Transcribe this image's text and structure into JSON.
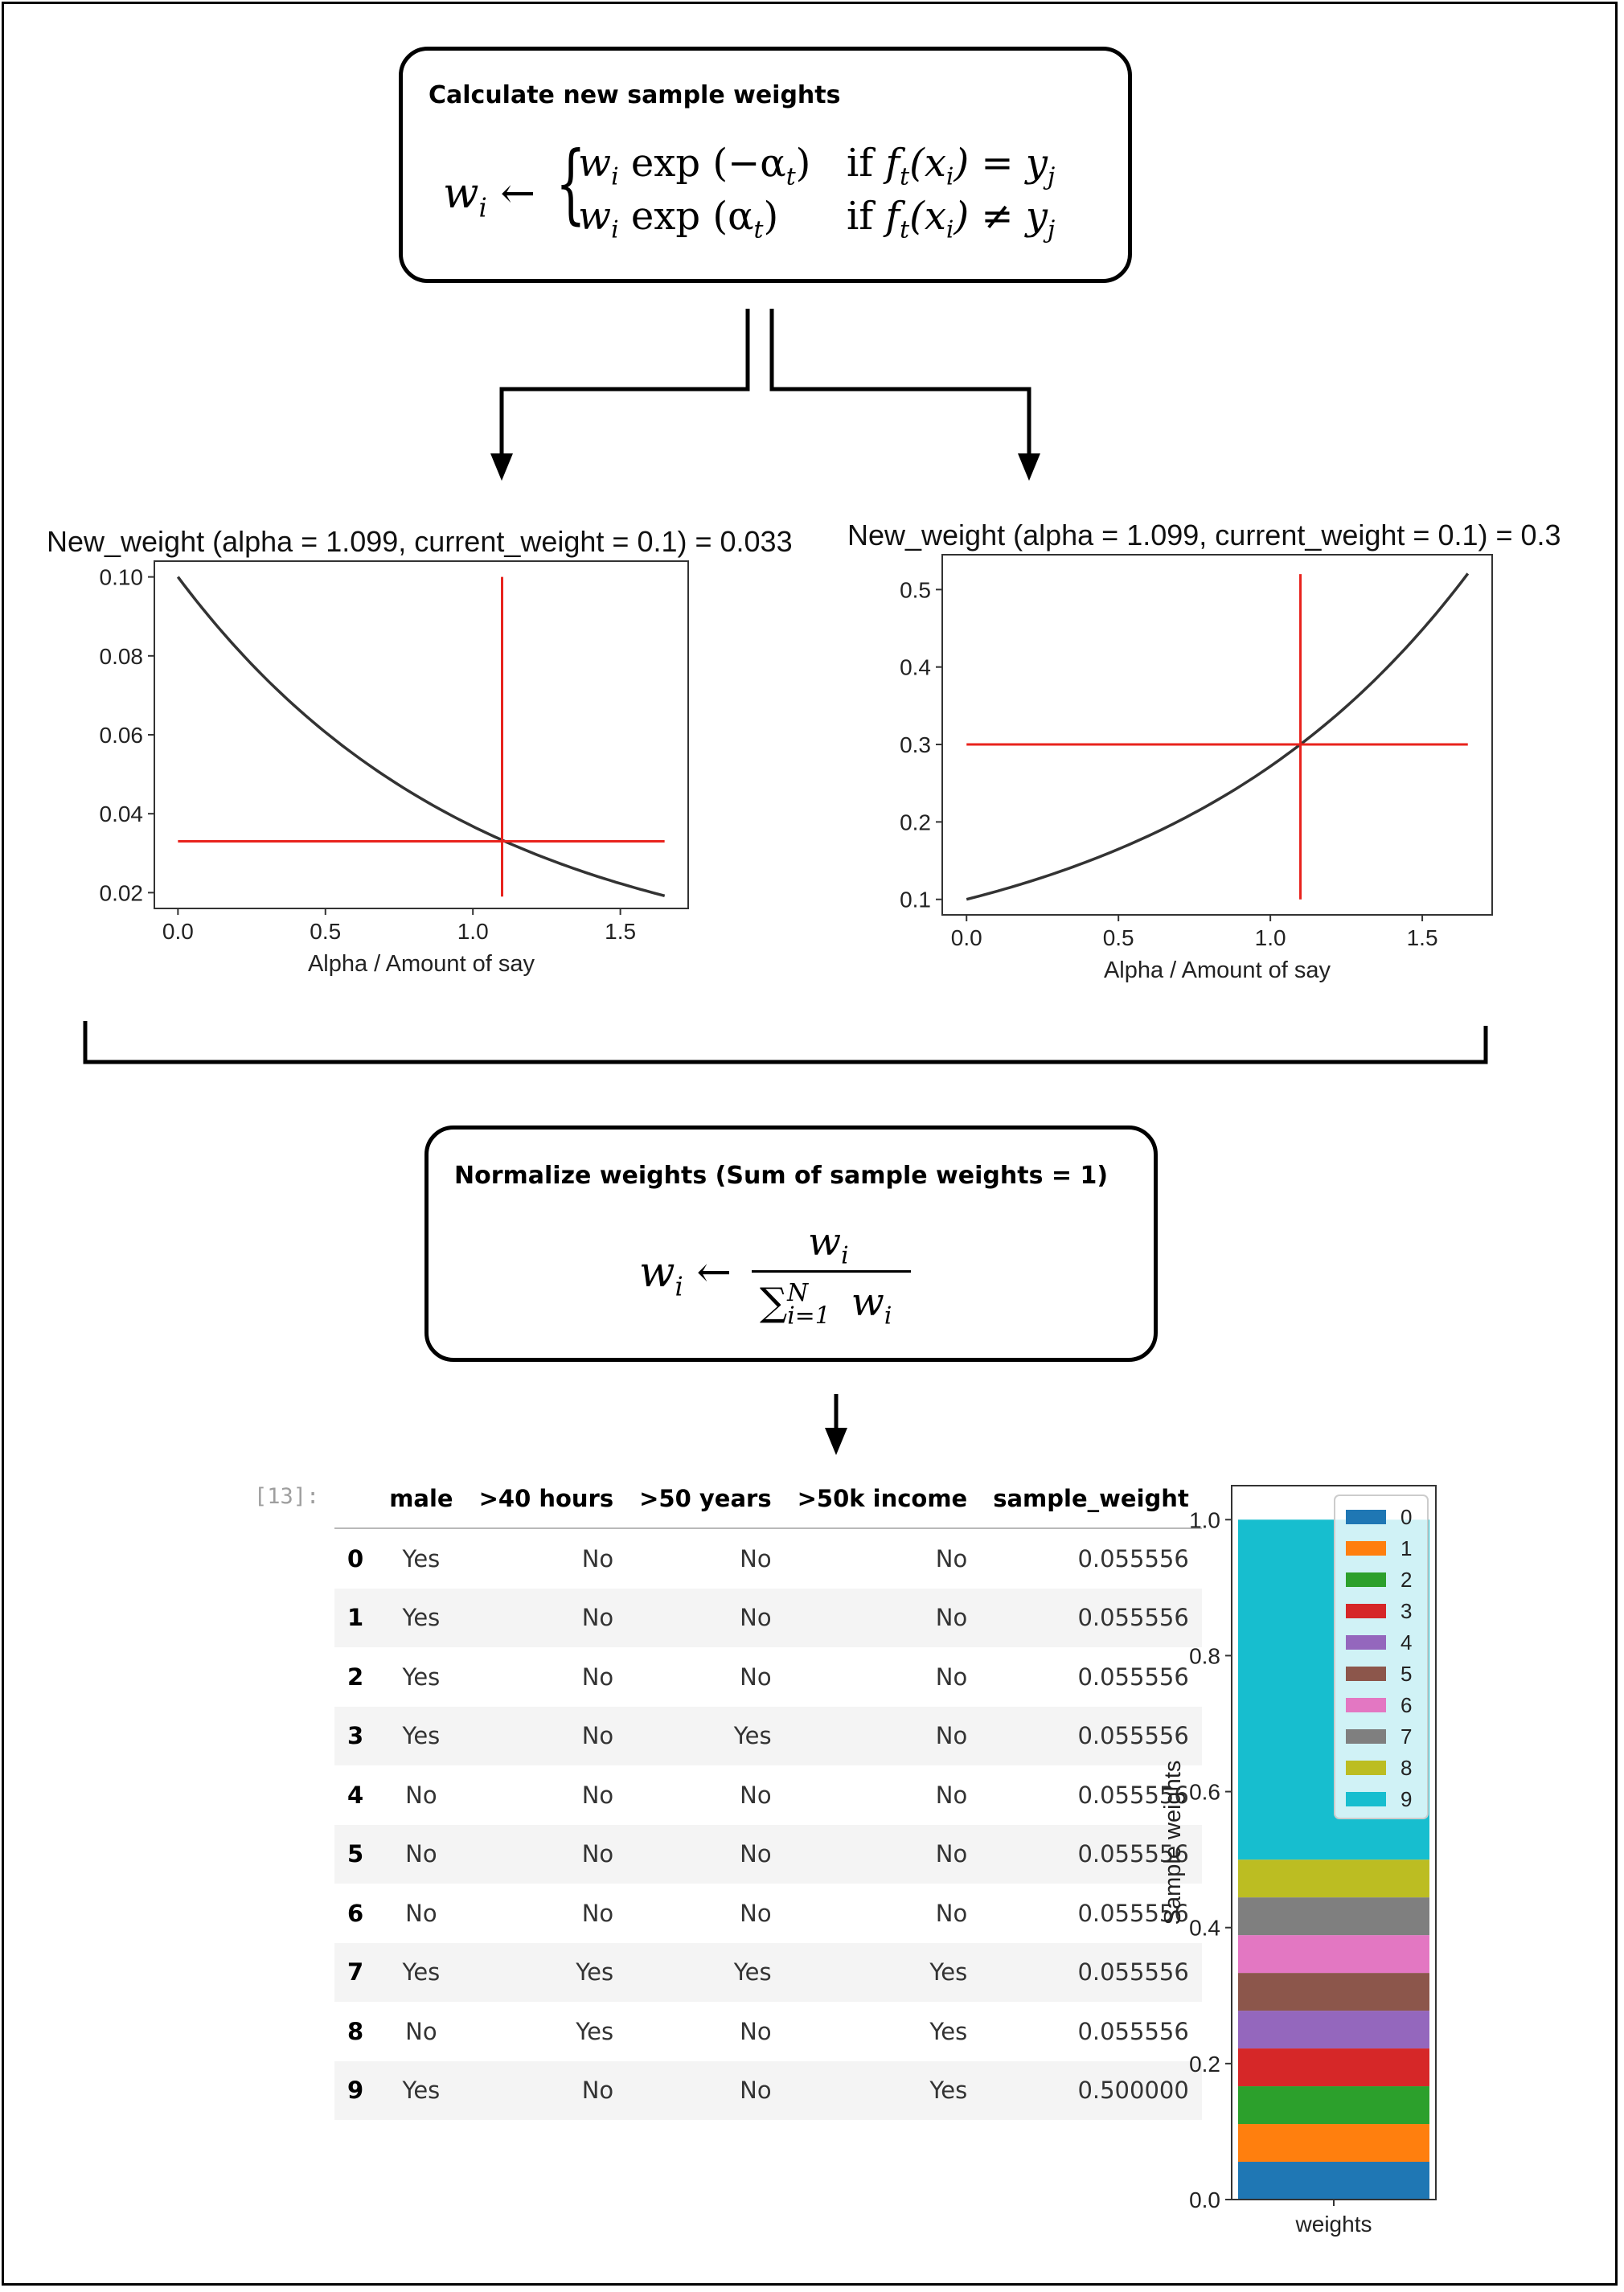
{
  "step1": {
    "title": "Calculate new sample weights",
    "formula": {
      "lhs_var": "w",
      "lhs_sub": "i",
      "arrow": "←",
      "case1_expr": "w",
      "case1_sub": "i",
      "case1_fn": "exp",
      "case1_arg": "(−α",
      "case1_arg_sub": "t",
      "case1_close": ")",
      "case1_cond_if": "if",
      "case1_cond": "f",
      "case1_cond_sub": "t",
      "case1_cond_x": "(x",
      "case1_cond_x_sub": "i",
      "case1_cond_rel": ") = y",
      "case1_cond_y_sub": "j",
      "case2_expr": "w",
      "case2_sub": "i",
      "case2_fn": "exp",
      "case2_arg": "(α",
      "case2_arg_sub": "t",
      "case2_close": ")",
      "case2_cond_if": "if",
      "case2_cond": "f",
      "case2_cond_sub": "t",
      "case2_cond_x": "(x",
      "case2_cond_x_sub": "i",
      "case2_cond_rel": ") ≠ y",
      "case2_cond_y_sub": "j"
    }
  },
  "step2": {
    "title": "Normalize weights (Sum of sample weights = 1)",
    "formula": {
      "lhs_var": "w",
      "lhs_sub": "i",
      "arrow": "←",
      "num": "w",
      "num_sub": "i",
      "den_sum": "∑",
      "den_sum_sub": "i=1",
      "den_sum_sup": "N",
      "den_var": "w",
      "den_var_sub": "i"
    }
  },
  "chart_data": [
    {
      "type": "line",
      "title": "New_weight (alpha = 1.099, current_weight = 0.1) = 0.033",
      "xlabel": "Alpha / Amount of say",
      "ylabel": "",
      "xlim": [
        -0.08,
        1.73
      ],
      "ylim": [
        0.016,
        0.104
      ],
      "xticks": [
        "0.0",
        "0.5",
        "1.0",
        "1.5"
      ],
      "xtick_values": [
        0,
        0.5,
        1,
        1.5
      ],
      "yticks": [
        "0.02",
        "0.04",
        "0.06",
        "0.08",
        "0.10"
      ],
      "ytick_values": [
        0.02,
        0.04,
        0.06,
        0.08,
        0.1
      ],
      "curve": {
        "formula": "0.1*exp(-x)",
        "x_start": 0,
        "x_end": 1.65,
        "color": "#333333"
      },
      "hline": {
        "y": 0.033,
        "x_start": 0,
        "x_end": 1.65,
        "color": "#e8231d"
      },
      "vline": {
        "x": 1.099,
        "y_start": 0.019,
        "y_end": 0.1,
        "color": "#e8231d"
      }
    },
    {
      "type": "line",
      "title": "New_weight (alpha = 1.099, current_weight = 0.1) = 0.3",
      "xlabel": "Alpha / Amount of say",
      "ylabel": "",
      "xlim": [
        -0.08,
        1.73
      ],
      "ylim": [
        0.08,
        0.545
      ],
      "xticks": [
        "0.0",
        "0.5",
        "1.0",
        "1.5"
      ],
      "xtick_values": [
        0,
        0.5,
        1,
        1.5
      ],
      "yticks": [
        "0.1",
        "0.2",
        "0.3",
        "0.4",
        "0.5"
      ],
      "ytick_values": [
        0.1,
        0.2,
        0.3,
        0.4,
        0.5
      ],
      "curve": {
        "formula": "0.1*exp(x)",
        "x_start": 0,
        "x_end": 1.65,
        "color": "#333333"
      },
      "hline": {
        "y": 0.3,
        "x_start": 0,
        "x_end": 1.65,
        "color": "#e8231d"
      },
      "vline": {
        "x": 1.099,
        "y_start": 0.1,
        "y_end": 0.52,
        "color": "#e8231d"
      }
    },
    {
      "type": "bar",
      "stacked": true,
      "categories": [
        "weights"
      ],
      "xlabel": "",
      "ylabel": "Sample weights",
      "ylim": [
        0,
        1.05
      ],
      "yticks": [
        "0.0",
        "0.2",
        "0.4",
        "0.6",
        "0.8",
        "1.0"
      ],
      "ytick_values": [
        0,
        0.2,
        0.4,
        0.6,
        0.8,
        1.0
      ],
      "legend_position": "top-right",
      "series": [
        {
          "name": "0",
          "values": [
            0.055556
          ],
          "color": "#1f77b4"
        },
        {
          "name": "1",
          "values": [
            0.055556
          ],
          "color": "#ff7f0e"
        },
        {
          "name": "2",
          "values": [
            0.055556
          ],
          "color": "#2ca02c"
        },
        {
          "name": "3",
          "values": [
            0.055556
          ],
          "color": "#d62728"
        },
        {
          "name": "4",
          "values": [
            0.055556
          ],
          "color": "#9467bd"
        },
        {
          "name": "5",
          "values": [
            0.055556
          ],
          "color": "#8c564b"
        },
        {
          "name": "6",
          "values": [
            0.055556
          ],
          "color": "#e377c2"
        },
        {
          "name": "7",
          "values": [
            0.055556
          ],
          "color": "#7f7f7f"
        },
        {
          "name": "8",
          "values": [
            0.055556
          ],
          "color": "#bcbd22"
        },
        {
          "name": "9",
          "values": [
            0.5
          ],
          "color": "#17becf"
        }
      ]
    }
  ],
  "notebook": {
    "execution_count": "[13]:",
    "table": {
      "columns": [
        "",
        "male",
        ">40 hours",
        ">50 years",
        ">50k income",
        "sample_weight"
      ],
      "rows": [
        [
          "0",
          "Yes",
          "No",
          "No",
          "No",
          "0.055556"
        ],
        [
          "1",
          "Yes",
          "No",
          "No",
          "No",
          "0.055556"
        ],
        [
          "2",
          "Yes",
          "No",
          "No",
          "No",
          "0.055556"
        ],
        [
          "3",
          "Yes",
          "No",
          "Yes",
          "No",
          "0.055556"
        ],
        [
          "4",
          "No",
          "No",
          "No",
          "No",
          "0.055556"
        ],
        [
          "5",
          "No",
          "No",
          "No",
          "No",
          "0.055556"
        ],
        [
          "6",
          "No",
          "No",
          "No",
          "No",
          "0.055556"
        ],
        [
          "7",
          "Yes",
          "Yes",
          "Yes",
          "Yes",
          "0.055556"
        ],
        [
          "8",
          "No",
          "Yes",
          "No",
          "Yes",
          "0.055556"
        ],
        [
          "9",
          "Yes",
          "No",
          "No",
          "Yes",
          "0.500000"
        ]
      ]
    }
  }
}
